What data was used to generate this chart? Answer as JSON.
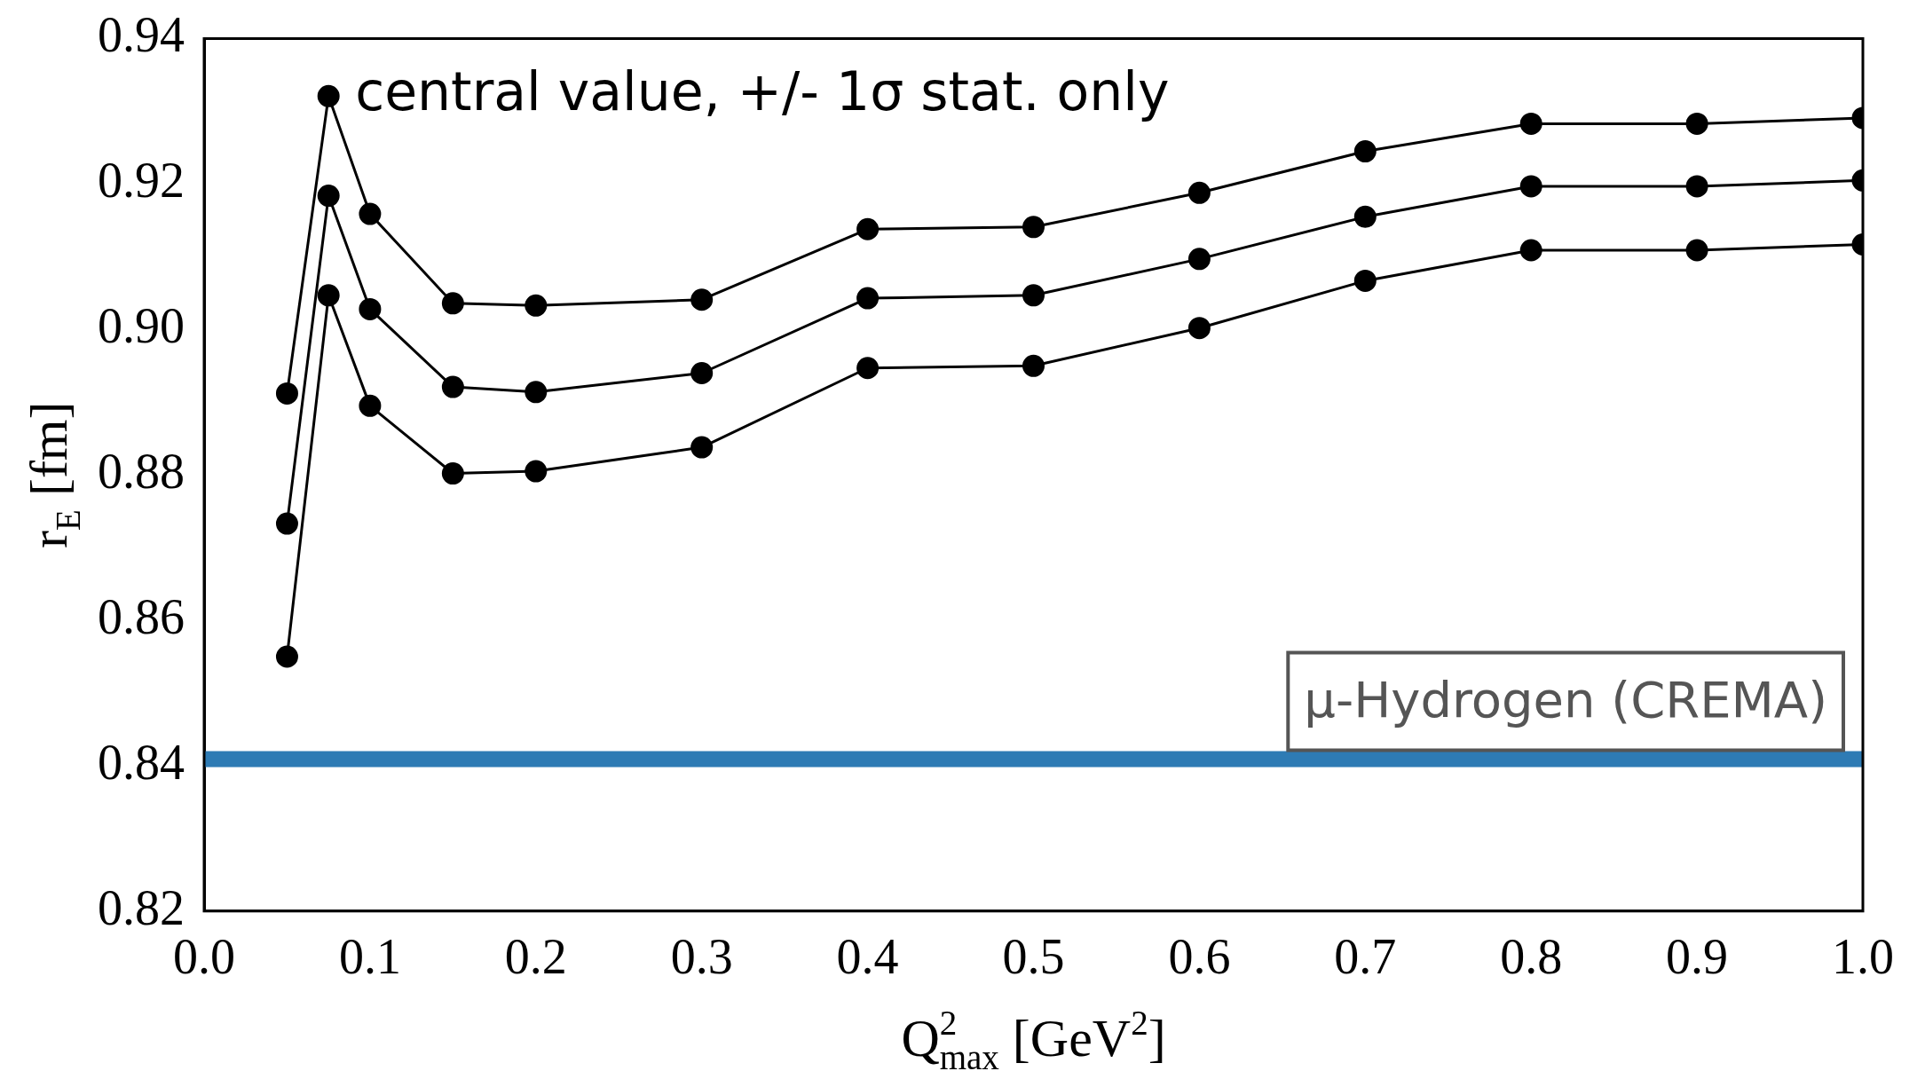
{
  "chart_data": {
    "type": "line",
    "xlabel": "Q$^{2}$$_{max}$ [GeV$^{2}$]",
    "ylabel": "r$_{E}$ [fm]",
    "x": [
      0.05,
      0.075,
      0.1,
      0.15,
      0.2,
      0.3,
      0.4,
      0.5,
      0.6,
      0.7,
      0.8,
      0.9,
      1.0
    ],
    "series": [
      {
        "color": "#000000",
        "values": [
          0.8912,
          0.9321,
          0.9159,
          0.9036,
          0.9033,
          0.9041,
          0.9138,
          0.9141,
          0.9188,
          0.9245,
          0.9283,
          0.9283,
          0.9291
        ]
      },
      {
        "color": "#000000",
        "values": [
          0.8733,
          0.9184,
          0.9028,
          0.8921,
          0.8914,
          0.894,
          0.9043,
          0.9047,
          0.9097,
          0.9155,
          0.9197,
          0.9197,
          0.9205
        ]
      },
      {
        "color": "#000000",
        "values": [
          0.855,
          0.9047,
          0.8895,
          0.8802,
          0.8805,
          0.8838,
          0.8947,
          0.895,
          0.9002,
          0.9067,
          0.9109,
          0.9109,
          0.9117
        ]
      }
    ],
    "xlim": [
      0,
      1
    ],
    "xticks": [
      {
        "value": 0,
        "label": "0.0"
      },
      {
        "value": 0.1,
        "label": "0.1"
      },
      {
        "value": 0.2,
        "label": "0.2"
      },
      {
        "value": 0.3,
        "label": "0.3"
      },
      {
        "value": 0.4,
        "label": "0.4"
      },
      {
        "value": 0.5,
        "label": "0.5"
      },
      {
        "value": 0.6,
        "label": "0.6"
      },
      {
        "value": 0.7,
        "label": "0.7"
      },
      {
        "value": 0.8,
        "label": "0.8"
      },
      {
        "value": 0.9,
        "label": "0.9"
      },
      {
        "value": 1,
        "label": "1.0"
      }
    ],
    "ylim": [
      0.82,
      0.94
    ],
    "yticks": [
      0.82,
      0.84,
      0.86,
      0.88,
      {
        "value": 0.9,
        "label": "0.90"
      },
      0.92,
      0.94
    ],
    "ref_lines": [
      {
        "axis": "y",
        "value": 0.8409,
        "label": "μ-Hydrogen (CREMA)",
        "color": "#2e7bb4"
      }
    ],
    "annotations": [
      {
        "text": "central value, +/- 1σ stat. only",
        "x": 0.075,
        "y": 0.9321
      }
    ],
    "marker": "circle",
    "line_style": "solid",
    "grid": false,
    "legend": false
  }
}
